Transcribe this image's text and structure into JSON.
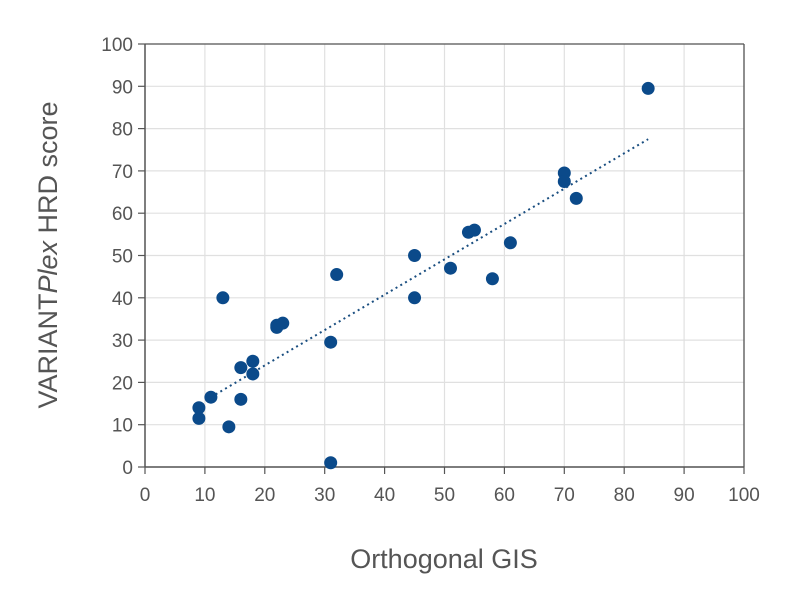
{
  "chart_data": {
    "type": "scatter",
    "title": "",
    "xlabel": "Orthogonal GIS",
    "ylabel_parts": [
      {
        "text": "VARIANT",
        "style": "normal"
      },
      {
        "text": "Plex",
        "style": "italic"
      },
      {
        "text": " HRD score",
        "style": "normal"
      }
    ],
    "xlim": [
      0,
      100
    ],
    "ylim": [
      0,
      100
    ],
    "x_ticks": [
      "0",
      "10",
      "20",
      "30",
      "40",
      "50",
      "60",
      "70",
      "80",
      "90",
      "100"
    ],
    "y_ticks": [
      "0",
      "10",
      "20",
      "30",
      "40",
      "50",
      "60",
      "70",
      "80",
      "90",
      "100"
    ],
    "grid": true,
    "trendline": {
      "style": "dotted",
      "x_start": 11,
      "y_start": 16.5,
      "x_end": 84,
      "y_end": 77.5
    },
    "series": [
      {
        "points": [
          {
            "x": 9,
            "y": 14
          },
          {
            "x": 9,
            "y": 11.5
          },
          {
            "x": 11,
            "y": 16.5
          },
          {
            "x": 13,
            "y": 40
          },
          {
            "x": 14,
            "y": 9.5
          },
          {
            "x": 16,
            "y": 23.5
          },
          {
            "x": 16,
            "y": 16
          },
          {
            "x": 18,
            "y": 25
          },
          {
            "x": 18,
            "y": 22
          },
          {
            "x": 22,
            "y": 33
          },
          {
            "x": 22,
            "y": 33.5
          },
          {
            "x": 23,
            "y": 34
          },
          {
            "x": 31,
            "y": 29.5
          },
          {
            "x": 31,
            "y": 1
          },
          {
            "x": 32,
            "y": 45.5
          },
          {
            "x": 45,
            "y": 50
          },
          {
            "x": 45,
            "y": 40
          },
          {
            "x": 51,
            "y": 47
          },
          {
            "x": 54,
            "y": 55.5
          },
          {
            "x": 55,
            "y": 56
          },
          {
            "x": 58,
            "y": 44.5
          },
          {
            "x": 61,
            "y": 53
          },
          {
            "x": 70,
            "y": 69.5
          },
          {
            "x": 70,
            "y": 67.5
          },
          {
            "x": 72,
            "y": 63.5
          },
          {
            "x": 84,
            "y": 89.5
          }
        ]
      }
    ],
    "colors": {
      "point": "#0b4a8a",
      "trendline": "#1a4e80",
      "grid": "#e0e0e0",
      "axis": "#555555",
      "text": "#555555"
    }
  }
}
